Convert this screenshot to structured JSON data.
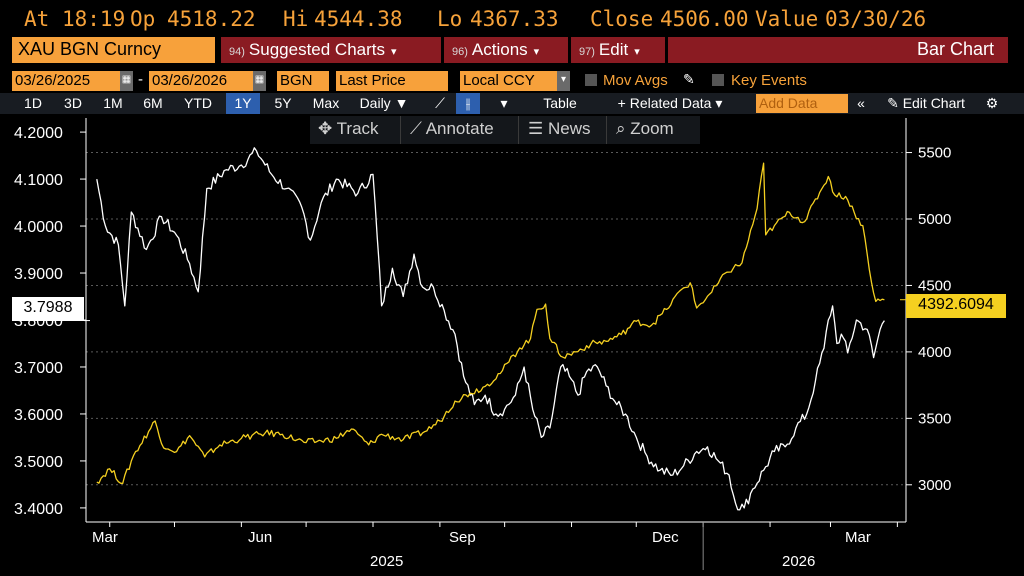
{
  "quote": {
    "at_label": "At",
    "time": "18:19",
    "op_label": "Op",
    "open": "4518.22",
    "hi_label": "Hi",
    "high": "4544.38",
    "lo_label": "Lo",
    "low": "4367.33",
    "close_label": "Close",
    "close": "4506.00",
    "value_label": "Value",
    "value_date": "03/30/26"
  },
  "menu": {
    "ticker": "XAU BGN Curncy",
    "suggested": {
      "num": "94)",
      "label": "Suggested Charts"
    },
    "actions": {
      "num": "96)",
      "label": "Actions"
    },
    "edit": {
      "num": "97)",
      "label": "Edit"
    },
    "chart_type": "Bar Chart"
  },
  "settings": {
    "start_date": "03/26/2025",
    "end_date": "03/26/2026",
    "source": "BGN",
    "field": "Last Price",
    "currency": "Local CCY",
    "mov_avgs": "Mov Avgs",
    "key_events": "Key Events"
  },
  "range": {
    "buttons": [
      "1D",
      "3D",
      "1M",
      "6M",
      "YTD",
      "1Y",
      "5Y",
      "Max"
    ],
    "active": "1Y",
    "frequency": "Daily",
    "table": "Table",
    "related": "+ Related Data",
    "add_data": "Add Data",
    "edit_chart": "Edit Chart"
  },
  "chart_tools": {
    "track": "Track",
    "annotate": "Annotate",
    "news": "News",
    "zoom": "Zoom"
  },
  "icons": [
    "calendar-icon",
    "pencil-icon",
    "line-chart-icon",
    "bar-chart-icon",
    "gear-icon",
    "crosshair-icon",
    "annotate-icon",
    "news-icon",
    "magnifier-icon",
    "double-chevron-left-icon"
  ],
  "colors": {
    "accent_orange": "#f7a13b",
    "menu_red": "#8a1b22",
    "gold_series": "#f5d020",
    "white_series": "#ffffff",
    "active_blue": "#2d5fae"
  },
  "chart_data": {
    "type": "line",
    "x_ticks": [
      "Mar",
      "Jun",
      "Sep",
      "Dec",
      "Mar"
    ],
    "year_labels": [
      "2025",
      "2026"
    ],
    "left_axis": {
      "ticks": [
        "4.2000",
        "4.1000",
        "4.0000",
        "3.9000",
        "3.8000",
        "3.7000",
        "3.6000",
        "3.5000",
        "3.4000"
      ],
      "ylim": [
        3.37,
        4.23
      ]
    },
    "right_axis": {
      "ticks": [
        "5500",
        "5000",
        "4500",
        "4000",
        "3500",
        "3000"
      ],
      "ylim": [
        2720,
        5760
      ]
    },
    "last_left": "3.7988",
    "last_right": "4392.6094",
    "series": [
      {
        "axis": "left",
        "color": "#ffffff",
        "points": [
          [
            "2025-03-26",
            4.1
          ],
          [
            "2025-03-30",
            4.0
          ],
          [
            "2025-04-05",
            3.96
          ],
          [
            "2025-04-08",
            3.83
          ],
          [
            "2025-04-11",
            4.03
          ],
          [
            "2025-04-18",
            3.95
          ],
          [
            "2025-04-25",
            4.02
          ],
          [
            "2025-05-02",
            3.98
          ],
          [
            "2025-05-08",
            3.92
          ],
          [
            "2025-05-12",
            3.86
          ],
          [
            "2025-05-16",
            4.08
          ],
          [
            "2025-05-25",
            4.12
          ],
          [
            "2025-06-01",
            4.13
          ],
          [
            "2025-06-08",
            4.16
          ],
          [
            "2025-06-15",
            4.11
          ],
          [
            "2025-06-22",
            4.08
          ],
          [
            "2025-06-29",
            4.04
          ],
          [
            "2025-07-03",
            3.97
          ],
          [
            "2025-07-08",
            4.05
          ],
          [
            "2025-07-15",
            4.1
          ],
          [
            "2025-07-25",
            4.07
          ],
          [
            "2025-08-01",
            4.11
          ],
          [
            "2025-08-05",
            3.83
          ],
          [
            "2025-08-10",
            3.91
          ],
          [
            "2025-08-15",
            3.85
          ],
          [
            "2025-08-20",
            3.94
          ],
          [
            "2025-08-24",
            3.87
          ],
          [
            "2025-08-29",
            3.87
          ],
          [
            "2025-09-03",
            3.82
          ],
          [
            "2025-09-08",
            3.77
          ],
          [
            "2025-09-12",
            3.68
          ],
          [
            "2025-09-17",
            3.62
          ],
          [
            "2025-09-22",
            3.64
          ],
          [
            "2025-09-27",
            3.6
          ],
          [
            "2025-10-01",
            3.61
          ],
          [
            "2025-10-06",
            3.64
          ],
          [
            "2025-10-10",
            3.7
          ],
          [
            "2025-10-14",
            3.61
          ],
          [
            "2025-10-18",
            3.55
          ],
          [
            "2025-10-22",
            3.57
          ],
          [
            "2025-10-27",
            3.7
          ],
          [
            "2025-10-31",
            3.68
          ],
          [
            "2025-11-04",
            3.64
          ],
          [
            "2025-11-08",
            3.69
          ],
          [
            "2025-11-13",
            3.7
          ],
          [
            "2025-11-17",
            3.66
          ],
          [
            "2025-11-22",
            3.62
          ],
          [
            "2025-11-26",
            3.6
          ],
          [
            "2025-12-01",
            3.55
          ],
          [
            "2025-12-06",
            3.51
          ],
          [
            "2025-12-12",
            3.48
          ],
          [
            "2025-12-18",
            3.47
          ],
          [
            "2025-12-23",
            3.49
          ],
          [
            "2025-12-29",
            3.52
          ],
          [
            "2026-01-03",
            3.53
          ],
          [
            "2026-01-08",
            3.5
          ],
          [
            "2026-01-13",
            3.47
          ],
          [
            "2026-01-16",
            3.41
          ],
          [
            "2026-01-20",
            3.4
          ],
          [
            "2026-01-24",
            3.44
          ],
          [
            "2026-01-29",
            3.48
          ],
          [
            "2026-02-03",
            3.52
          ],
          [
            "2026-02-08",
            3.53
          ],
          [
            "2026-02-13",
            3.57
          ],
          [
            "2026-02-18",
            3.6
          ],
          [
            "2026-02-22",
            3.67
          ],
          [
            "2026-02-26",
            3.74
          ],
          [
            "2026-02-28",
            3.8
          ],
          [
            "2026-03-02",
            3.83
          ],
          [
            "2026-03-04",
            3.75
          ],
          [
            "2026-03-06",
            3.77
          ],
          [
            "2026-03-09",
            3.73
          ],
          [
            "2026-03-13",
            3.8
          ],
          [
            "2026-03-18",
            3.78
          ],
          [
            "2026-03-21",
            3.72
          ],
          [
            "2026-03-24",
            3.78
          ],
          [
            "2026-03-26",
            3.7988
          ]
        ]
      },
      {
        "axis": "right",
        "color": "#f5d020",
        "points": [
          [
            "2025-03-26",
            3020
          ],
          [
            "2025-04-01",
            3120
          ],
          [
            "2025-04-07",
            3010
          ],
          [
            "2025-04-12",
            3220
          ],
          [
            "2025-04-22",
            3480
          ],
          [
            "2025-04-25",
            3310
          ],
          [
            "2025-05-02",
            3250
          ],
          [
            "2025-05-08",
            3370
          ],
          [
            "2025-05-15",
            3210
          ],
          [
            "2025-05-22",
            3300
          ],
          [
            "2025-06-01",
            3350
          ],
          [
            "2025-06-12",
            3390
          ],
          [
            "2025-06-20",
            3380
          ],
          [
            "2025-06-30",
            3320
          ],
          [
            "2025-07-08",
            3330
          ],
          [
            "2025-07-15",
            3350
          ],
          [
            "2025-07-22",
            3420
          ],
          [
            "2025-07-30",
            3300
          ],
          [
            "2025-08-05",
            3380
          ],
          [
            "2025-08-15",
            3340
          ],
          [
            "2025-08-25",
            3400
          ],
          [
            "2025-09-01",
            3480
          ],
          [
            "2025-09-08",
            3630
          ],
          [
            "2025-09-15",
            3690
          ],
          [
            "2025-09-22",
            3740
          ],
          [
            "2025-09-30",
            3860
          ],
          [
            "2025-10-08",
            4030
          ],
          [
            "2025-10-13",
            4100
          ],
          [
            "2025-10-16",
            4320
          ],
          [
            "2025-10-20",
            4360
          ],
          [
            "2025-10-22",
            4100
          ],
          [
            "2025-10-28",
            3960
          ],
          [
            "2025-11-03",
            4000
          ],
          [
            "2025-11-10",
            4060
          ],
          [
            "2025-11-17",
            4080
          ],
          [
            "2025-11-24",
            4130
          ],
          [
            "2025-12-01",
            4230
          ],
          [
            "2025-12-08",
            4200
          ],
          [
            "2025-12-15",
            4320
          ],
          [
            "2025-12-22",
            4470
          ],
          [
            "2025-12-26",
            4520
          ],
          [
            "2025-12-29",
            4330
          ],
          [
            "2026-01-05",
            4450
          ],
          [
            "2026-01-12",
            4600
          ],
          [
            "2026-01-19",
            4670
          ],
          [
            "2026-01-26",
            5080
          ],
          [
            "2026-01-29",
            5420
          ],
          [
            "2026-01-30",
            4880
          ],
          [
            "2026-02-03",
            4950
          ],
          [
            "2026-02-10",
            5050
          ],
          [
            "2026-02-17",
            4980
          ],
          [
            "2026-02-24",
            5200
          ],
          [
            "2026-02-28",
            5320
          ],
          [
            "2026-03-03",
            5180
          ],
          [
            "2026-03-08",
            5170
          ],
          [
            "2026-03-12",
            5050
          ],
          [
            "2026-03-16",
            4950
          ],
          [
            "2026-03-19",
            4620
          ],
          [
            "2026-03-22",
            4380
          ],
          [
            "2026-03-26",
            4392.6094
          ]
        ]
      }
    ]
  }
}
